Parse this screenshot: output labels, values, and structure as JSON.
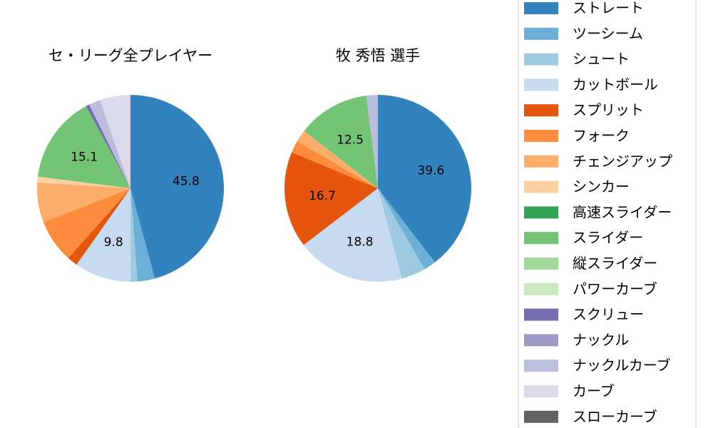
{
  "chart_data": [
    {
      "type": "pie",
      "title": "セ・リーグ全プレイヤー",
      "labels": [
        "ストレート",
        "ツーシーム",
        "シュート",
        "カットボール",
        "スプリット",
        "フォーク",
        "チェンジアップ",
        "シンカー",
        "高速スライダー",
        "スライダー",
        "縦スライダー",
        "パワーカーブ",
        "スクリュー",
        "ナックル",
        "ナックルカーブ",
        "カーブ",
        "スローカーブ"
      ],
      "values": [
        45.8,
        3.0,
        1.2,
        9.8,
        1.8,
        7.5,
        6.9,
        1.0,
        0.0,
        15.1,
        0.0,
        0.0,
        0.6,
        0.0,
        2.0,
        5.3,
        0.0
      ],
      "data_labels": [
        "45.8",
        "",
        "",
        "9.8",
        "",
        "",
        "",
        "",
        "",
        "15.1",
        "",
        "",
        "",
        "",
        "",
        "",
        ""
      ]
    },
    {
      "type": "pie",
      "title": "牧 秀悟  選手",
      "labels": [
        "ストレート",
        "ツーシーム",
        "シュート",
        "カットボール",
        "スプリット",
        "フォーク",
        "チェンジアップ",
        "シンカー",
        "高速スライダー",
        "スライダー",
        "縦スライダー",
        "パワーカーブ",
        "スクリュー",
        "ナックル",
        "ナックルカーブ",
        "カーブ",
        "スローカーブ"
      ],
      "values": [
        39.6,
        2.1,
        4.2,
        18.8,
        16.7,
        2.1,
        2.1,
        0.0,
        0.0,
        12.5,
        0.0,
        0.0,
        0.0,
        0.0,
        2.0,
        0.0,
        0.0
      ],
      "data_labels": [
        "39.6",
        "",
        "",
        "18.8",
        "16.7",
        "",
        "",
        "",
        "",
        "12.5",
        "",
        "",
        "",
        "",
        "",
        "",
        ""
      ]
    }
  ],
  "legend": {
    "items": [
      {
        "label": "ストレート",
        "color": "#3182bd"
      },
      {
        "label": "ツーシーム",
        "color": "#6baed6"
      },
      {
        "label": "シュート",
        "color": "#9ecae1"
      },
      {
        "label": "カットボール",
        "color": "#c6dbef"
      },
      {
        "label": "スプリット",
        "color": "#e6550d"
      },
      {
        "label": "フォーク",
        "color": "#fd8d3c"
      },
      {
        "label": "チェンジアップ",
        "color": "#fdae6b"
      },
      {
        "label": "シンカー",
        "color": "#fdd0a2"
      },
      {
        "label": "高速スライダー",
        "color": "#31a354"
      },
      {
        "label": "スライダー",
        "color": "#74c476"
      },
      {
        "label": "縦スライダー",
        "color": "#a1d99b"
      },
      {
        "label": "パワーカーブ",
        "color": "#c7e9c0"
      },
      {
        "label": "スクリュー",
        "color": "#756bb1"
      },
      {
        "label": "ナックル",
        "color": "#9e9ac8"
      },
      {
        "label": "ナックルカーブ",
        "color": "#bcbddc"
      },
      {
        "label": "カーブ",
        "color": "#dadaeb"
      },
      {
        "label": "スローカーブ",
        "color": "#636363"
      }
    ]
  }
}
